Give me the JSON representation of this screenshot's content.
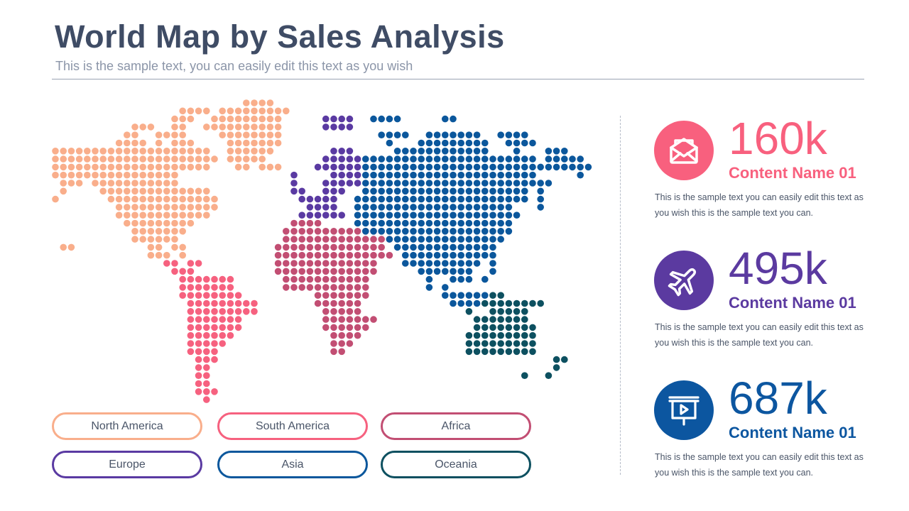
{
  "header": {
    "title": "World Map by Sales Analysis",
    "subtitle": "This is the sample text, you can easily edit this text as you wish"
  },
  "regions": [
    {
      "key": "N",
      "label": "North America",
      "color": "#f9ae8b"
    },
    {
      "key": "S",
      "label": "South America",
      "color": "#f6617f"
    },
    {
      "key": "A",
      "label": "Africa",
      "color": "#c24e73"
    },
    {
      "key": "E",
      "label": "Europe",
      "color": "#5a3aa2"
    },
    {
      "key": "I",
      "label": "Asia",
      "color": "#0b579c"
    },
    {
      "key": "O",
      "label": "Oceania",
      "color": "#0d5060"
    }
  ],
  "stats": [
    {
      "value": "160k",
      "name": "Content Name 01",
      "text": "This is the sample text you can easily edit this text as you wish this is the sample text you can.",
      "icon": "envelope-icon",
      "color": "#f8607e"
    },
    {
      "value": "495k",
      "name": "Content Name 01",
      "text": "This is the sample text you can easily edit this text as you wish this is the sample text you can.",
      "icon": "airplane-icon",
      "color": "#5b3aa0"
    },
    {
      "value": "687k",
      "name": "Content Name 01",
      "text": "This is the sample text you can easily edit this text as you wish this is the sample text you can.",
      "icon": "presentation-board-icon",
      "color": "#0c56a0"
    }
  ]
}
